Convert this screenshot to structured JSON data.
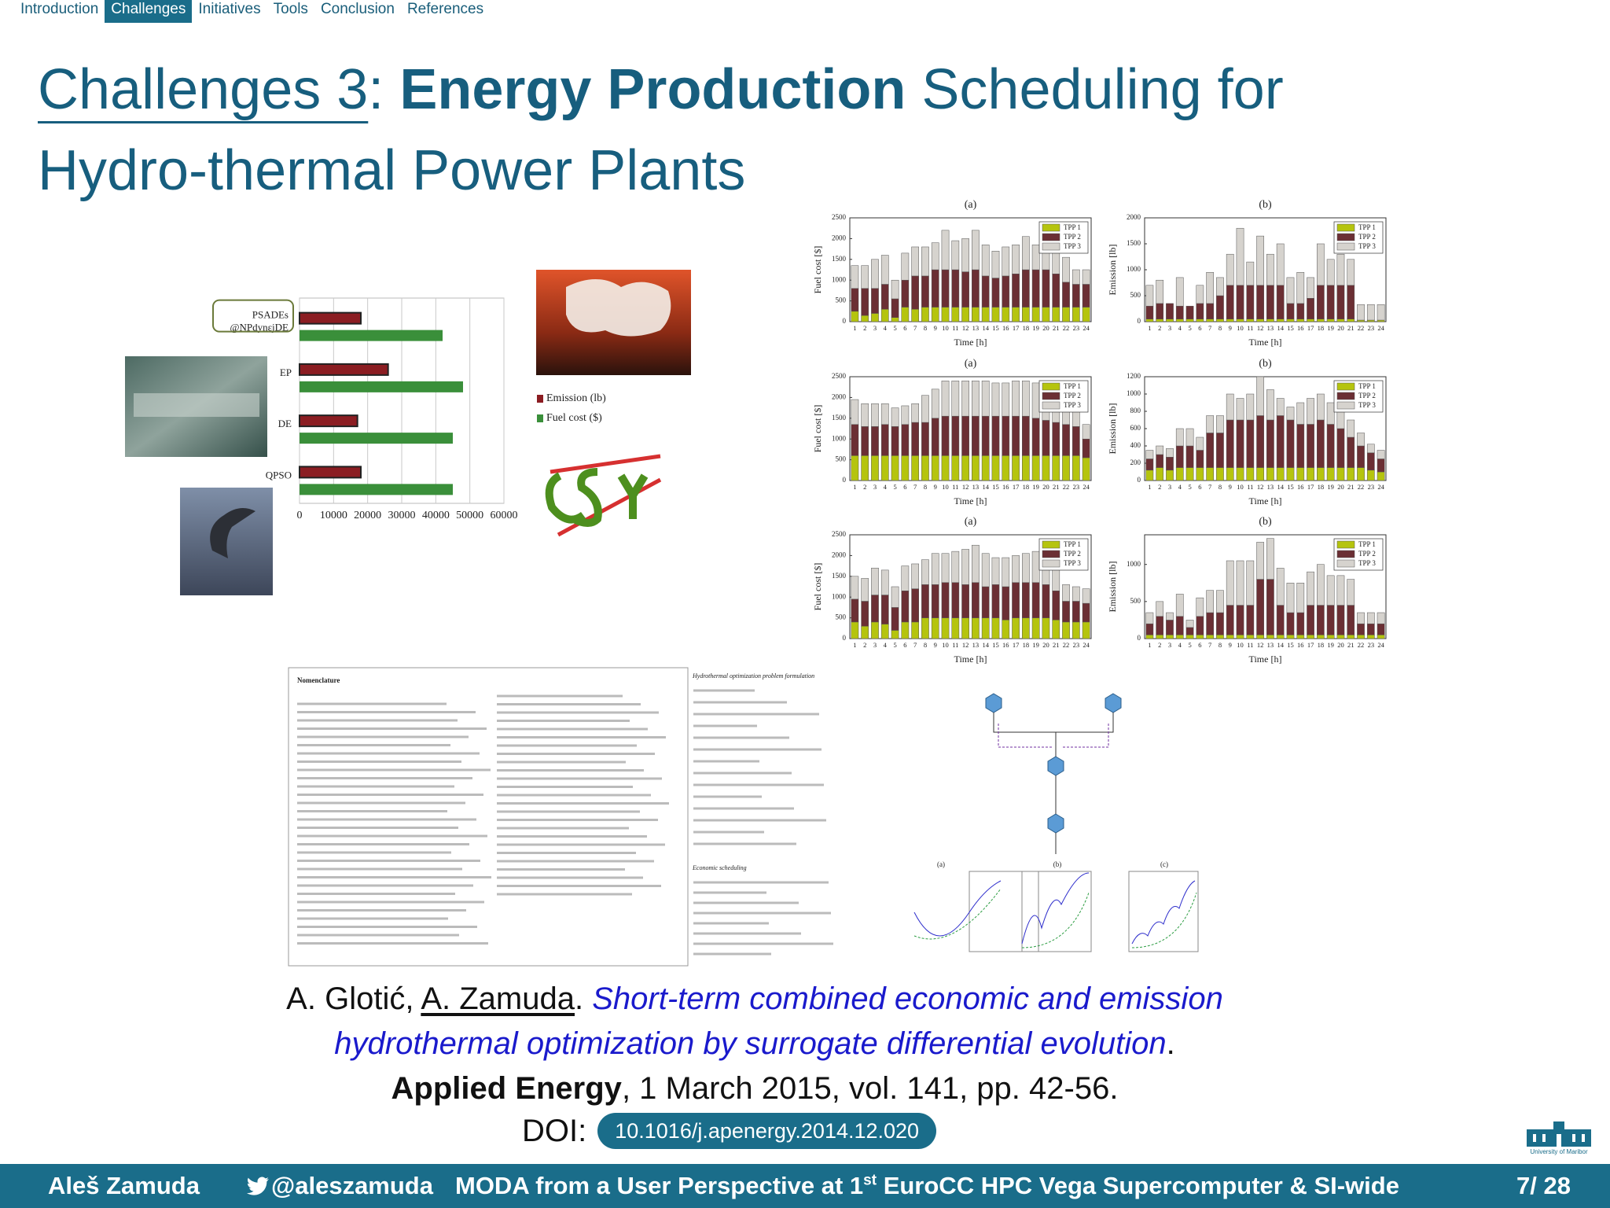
{
  "nav": {
    "items": [
      "Introduction",
      "Challenges",
      "Initiatives",
      "Tools",
      "Conclusion",
      "References"
    ],
    "active": 1
  },
  "title": {
    "part1": "Challenges 3",
    "part2": ": ",
    "bold": "Energy Production",
    "part3": " Scheduling for",
    "line2": "Hydro-thermal Power Plants"
  },
  "chart_data": [
    {
      "type": "bar",
      "stacked": true,
      "title": "(a)",
      "ylabel": "Fuel cost [$]",
      "xlabel": "Time [h]",
      "categories": [
        1,
        2,
        3,
        4,
        5,
        6,
        7,
        8,
        9,
        10,
        11,
        12,
        13,
        14,
        15,
        16,
        17,
        18,
        19,
        20,
        21,
        22,
        23,
        24
      ],
      "ylim": [
        0,
        2500
      ],
      "yticks": [
        0,
        500,
        1000,
        1500,
        2000,
        2500
      ],
      "series": [
        {
          "name": "TPP 1",
          "color": "#b5c40e",
          "values": [
            250,
            150,
            200,
            300,
            100,
            350,
            300,
            350,
            350,
            350,
            350,
            350,
            350,
            350,
            350,
            350,
            350,
            350,
            350,
            350,
            350,
            350,
            350,
            350
          ]
        },
        {
          "name": "TPP 2",
          "color": "#6b2f34",
          "values": [
            550,
            650,
            600,
            600,
            450,
            650,
            800,
            750,
            900,
            900,
            900,
            850,
            900,
            750,
            700,
            750,
            800,
            900,
            900,
            900,
            800,
            600,
            550,
            550
          ]
        },
        {
          "name": "TPP 3",
          "color": "#d6d3ce",
          "values": [
            550,
            550,
            700,
            700,
            450,
            650,
            700,
            700,
            650,
            950,
            700,
            800,
            950,
            750,
            650,
            700,
            700,
            800,
            600,
            700,
            800,
            600,
            350,
            350
          ]
        }
      ]
    },
    {
      "type": "bar",
      "stacked": true,
      "title": "(b)",
      "ylabel": "Emission [lb]",
      "xlabel": "Time [h]",
      "categories": [
        1,
        2,
        3,
        4,
        5,
        6,
        7,
        8,
        9,
        10,
        11,
        12,
        13,
        14,
        15,
        16,
        17,
        18,
        19,
        20,
        21,
        22,
        23,
        24
      ],
      "ylim": [
        0,
        2000
      ],
      "yticks": [
        0,
        500,
        1000,
        1500,
        2000
      ],
      "series": [
        {
          "name": "TPP 1",
          "color": "#b5c40e",
          "values": [
            50,
            50,
            50,
            50,
            50,
            50,
            50,
            50,
            50,
            50,
            50,
            50,
            50,
            50,
            50,
            50,
            50,
            50,
            50,
            50,
            50,
            30,
            30,
            30
          ]
        },
        {
          "name": "TPP 2",
          "color": "#6b2f34",
          "values": [
            250,
            300,
            300,
            250,
            250,
            300,
            300,
            450,
            650,
            650,
            650,
            650,
            650,
            650,
            300,
            300,
            400,
            650,
            650,
            650,
            650,
            0,
            0,
            0
          ]
        },
        {
          "name": "TPP 3",
          "color": "#d6d3ce",
          "values": [
            400,
            450,
            0,
            550,
            0,
            350,
            600,
            350,
            600,
            1100,
            450,
            950,
            600,
            800,
            500,
            600,
            400,
            800,
            500,
            600,
            500,
            300,
            300,
            300
          ]
        }
      ]
    },
    {
      "type": "bar",
      "stacked": true,
      "title": "(a)",
      "ylabel": "Fuel cost [$]",
      "xlabel": "Time [h]",
      "categories": [
        1,
        2,
        3,
        4,
        5,
        6,
        7,
        8,
        9,
        10,
        11,
        12,
        13,
        14,
        15,
        16,
        17,
        18,
        19,
        20,
        21,
        22,
        23,
        24
      ],
      "ylim": [
        0,
        2500
      ],
      "yticks": [
        0,
        500,
        1000,
        1500,
        2000,
        2500
      ],
      "series": [
        {
          "name": "TPP 1",
          "color": "#b5c40e",
          "values": [
            600,
            600,
            600,
            600,
            600,
            600,
            600,
            600,
            600,
            600,
            600,
            600,
            600,
            600,
            600,
            600,
            600,
            600,
            600,
            600,
            600,
            600,
            600,
            550
          ]
        },
        {
          "name": "TPP 2",
          "color": "#6b2f34",
          "values": [
            750,
            700,
            700,
            750,
            700,
            750,
            800,
            800,
            900,
            950,
            950,
            950,
            950,
            950,
            950,
            950,
            950,
            950,
            900,
            850,
            800,
            750,
            700,
            450
          ]
        },
        {
          "name": "TPP 3",
          "color": "#d6d3ce",
          "values": [
            600,
            550,
            550,
            500,
            450,
            450,
            450,
            650,
            700,
            850,
            850,
            850,
            850,
            850,
            800,
            800,
            850,
            850,
            850,
            750,
            650,
            550,
            450,
            350
          ]
        }
      ]
    },
    {
      "type": "bar",
      "stacked": true,
      "title": "(b)",
      "ylabel": "Emission [lb]",
      "xlabel": "Time [h]",
      "categories": [
        1,
        2,
        3,
        4,
        5,
        6,
        7,
        8,
        9,
        10,
        11,
        12,
        13,
        14,
        15,
        16,
        17,
        18,
        19,
        20,
        21,
        22,
        23,
        24
      ],
      "ylim": [
        0,
        1200
      ],
      "yticks": [
        0,
        200,
        400,
        600,
        800,
        1000,
        1200
      ],
      "series": [
        {
          "name": "TPP 1",
          "color": "#b5c40e",
          "values": [
            120,
            150,
            120,
            150,
            150,
            150,
            150,
            150,
            150,
            150,
            150,
            150,
            150,
            150,
            150,
            150,
            150,
            150,
            150,
            150,
            150,
            150,
            120,
            100
          ]
        },
        {
          "name": "TPP 2",
          "color": "#6b2f34",
          "values": [
            130,
            150,
            150,
            250,
            250,
            200,
            400,
            400,
            550,
            550,
            550,
            600,
            550,
            600,
            550,
            500,
            500,
            550,
            500,
            450,
            350,
            250,
            200,
            150
          ]
        },
        {
          "name": "TPP 3",
          "color": "#d6d3ce",
          "values": [
            100,
            100,
            100,
            200,
            200,
            150,
            200,
            200,
            300,
            250,
            300,
            450,
            350,
            200,
            150,
            250,
            300,
            300,
            250,
            200,
            200,
            150,
            100,
            100
          ]
        }
      ]
    },
    {
      "type": "bar",
      "stacked": true,
      "title": "(a)",
      "ylabel": "Fuel cost [$]",
      "xlabel": "Time [h]",
      "categories": [
        1,
        2,
        3,
        4,
        5,
        6,
        7,
        8,
        9,
        10,
        11,
        12,
        13,
        14,
        15,
        16,
        17,
        18,
        19,
        20,
        21,
        22,
        23,
        24
      ],
      "ylim": [
        0,
        2500
      ],
      "yticks": [
        0,
        500,
        1000,
        1500,
        2000,
        2500
      ],
      "series": [
        {
          "name": "TPP 1",
          "color": "#b5c40e",
          "values": [
            400,
            300,
            400,
            350,
            200,
            400,
            400,
            500,
            500,
            500,
            500,
            500,
            500,
            500,
            500,
            450,
            500,
            500,
            500,
            500,
            450,
            400,
            400,
            400
          ]
        },
        {
          "name": "TPP 2",
          "color": "#6b2f34",
          "values": [
            550,
            600,
            650,
            700,
            550,
            750,
            800,
            800,
            800,
            850,
            850,
            800,
            850,
            750,
            800,
            800,
            850,
            850,
            850,
            800,
            700,
            500,
            500,
            450
          ]
        },
        {
          "name": "TPP 3",
          "color": "#d6d3ce",
          "values": [
            550,
            550,
            650,
            600,
            500,
            600,
            600,
            600,
            750,
            700,
            750,
            850,
            900,
            800,
            650,
            700,
            650,
            700,
            750,
            650,
            600,
            400,
            350,
            350
          ]
        }
      ]
    },
    {
      "type": "bar",
      "stacked": true,
      "title": "(b)",
      "ylabel": "Emission [lb]",
      "xlabel": "Time [h]",
      "categories": [
        1,
        2,
        3,
        4,
        5,
        6,
        7,
        8,
        9,
        10,
        11,
        12,
        13,
        14,
        15,
        16,
        17,
        18,
        19,
        20,
        21,
        22,
        23,
        24
      ],
      "ylim": [
        0,
        1400
      ],
      "yticks": [
        0,
        500,
        1000
      ],
      "series": [
        {
          "name": "TPP 1",
          "color": "#b5c40e",
          "values": [
            50,
            50,
            50,
            50,
            50,
            50,
            50,
            50,
            50,
            50,
            50,
            50,
            50,
            50,
            50,
            50,
            50,
            50,
            50,
            50,
            50,
            50,
            50,
            50
          ]
        },
        {
          "name": "TPP 2",
          "color": "#6b2f34",
          "values": [
            150,
            250,
            200,
            250,
            100,
            250,
            300,
            300,
            400,
            400,
            400,
            750,
            750,
            400,
            300,
            300,
            400,
            400,
            400,
            400,
            400,
            150,
            150,
            150
          ]
        },
        {
          "name": "TPP 3",
          "color": "#d6d3ce",
          "values": [
            150,
            200,
            100,
            300,
            100,
            250,
            300,
            300,
            600,
            600,
            600,
            500,
            550,
            500,
            400,
            400,
            450,
            550,
            400,
            400,
            350,
            150,
            150,
            150
          ]
        }
      ]
    },
    {
      "type": "barh",
      "categories": [
        "PSADEs\n@NPdynεjDE",
        "EP",
        "DE",
        "QPSO"
      ],
      "xlim": [
        0,
        60000
      ],
      "xticks": [
        0,
        10000,
        20000,
        30000,
        40000,
        50000,
        60000
      ],
      "grid": true,
      "series": [
        {
          "name": "Emission (lb)",
          "color": "#8b1d22",
          "values": [
            18000,
            26000,
            17000,
            18000
          ]
        },
        {
          "name": "Fuel cost ($)",
          "color": "#3a8f3a",
          "values": [
            42000,
            48000,
            45000,
            45000
          ]
        }
      ]
    }
  ],
  "figures": {
    "nomenclature": "Nomenclature",
    "formulation": "Hydrothermal optimization problem formulation",
    "economic": "Economic scheduling",
    "panels": [
      "(a)",
      "(b)",
      "(c)"
    ]
  },
  "citation": {
    "authors1": "A. Glotić, ",
    "author2": "A. Zamuda",
    "sep": ". ",
    "title": "Short-term combined economic and emission hydrothermal optimization by surrogate differential evolution",
    "end": ".",
    "journal": "Applied Energy",
    "details": ", 1 March 2015, vol. 141, pp. 42-56.",
    "doi_label": "DOI:",
    "doi": "10.1016/j.apenergy.2014.12.020"
  },
  "footer": {
    "author": "Aleš Zamuda",
    "twitter": "@aleszamuda",
    "talk": "MODA from a User Perspective at 1",
    "sup": "st",
    "talk2": " EuroCC HPC Vega Supercomputer & SI-wide",
    "page": "7/ 28"
  },
  "logo": "University of Maribor"
}
